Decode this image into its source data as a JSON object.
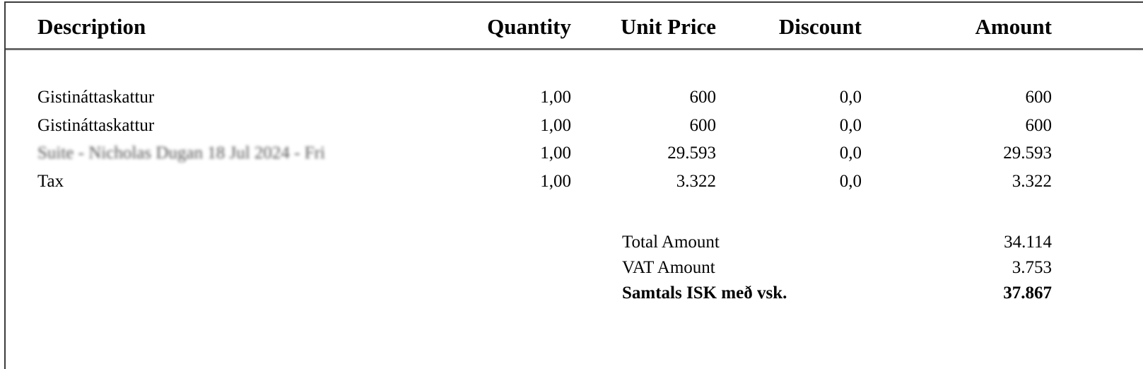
{
  "table": {
    "headers": {
      "description": "Description",
      "quantity": "Quantity",
      "unit_price": "Unit Price",
      "discount": "Discount",
      "amount": "Amount"
    },
    "rows": [
      {
        "description": "Gistináttaskattur",
        "quantity": "1,00",
        "unit_price": "600",
        "discount": "0,0",
        "amount": "600"
      },
      {
        "description": "Gistináttaskattur",
        "quantity": "1,00",
        "unit_price": "600",
        "discount": "0,0",
        "amount": "600"
      },
      {
        "description": "Suite - Nicholas Dugan 18 Jul 2024 - Fri",
        "quantity": "1,00",
        "unit_price": "29.593",
        "discount": "0,0",
        "amount": "29.593"
      },
      {
        "description": "Tax",
        "quantity": "1,00",
        "unit_price": "3.322",
        "discount": "0,0",
        "amount": "3.322"
      }
    ]
  },
  "totals": {
    "total_amount_label": "Total Amount",
    "total_amount_value": "34.114",
    "vat_amount_label": "VAT Amount",
    "vat_amount_value": "3.753",
    "grand_total_label": "Samtals ISK með vsk.",
    "grand_total_value": "37.867"
  }
}
